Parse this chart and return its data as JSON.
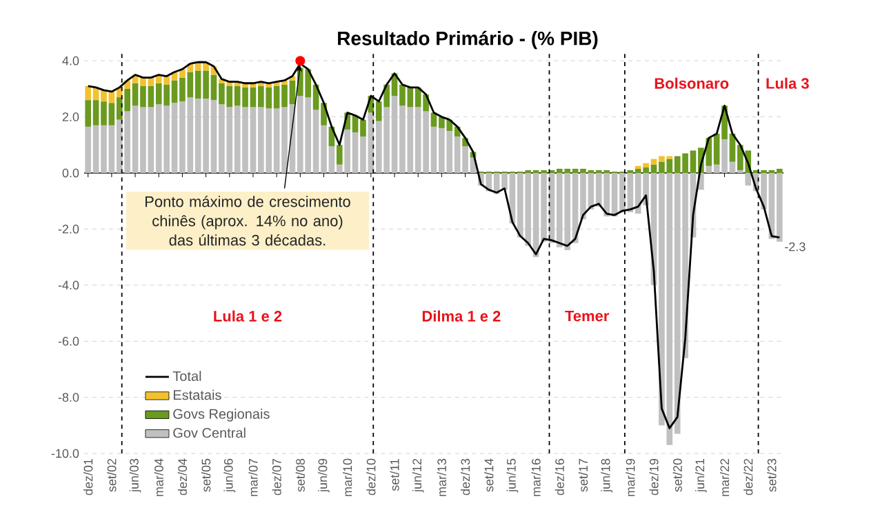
{
  "chart_data": {
    "type": "bar",
    "title": "Resultado Primário - (% PIB)",
    "stacked": true,
    "grid": "y",
    "legend": "bottom left",
    "categories": [
      "dez/01",
      null,
      null,
      "set/02",
      null,
      null,
      "jun/03",
      null,
      null,
      "mar/04",
      null,
      null,
      "dez/04",
      null,
      null,
      "set/05",
      null,
      null,
      "jun/06",
      null,
      null,
      "mar/07",
      null,
      null,
      "dez/07",
      null,
      null,
      "set/08",
      null,
      null,
      "jun/09",
      null,
      null,
      "mar/10",
      null,
      null,
      "dez/10",
      null,
      null,
      "set/11",
      null,
      null,
      "jun/12",
      null,
      null,
      "mar/13",
      null,
      null,
      "dez/13",
      null,
      null,
      "set/14",
      null,
      null,
      "jun/15",
      null,
      null,
      "mar/16",
      null,
      null,
      "dez/16",
      null,
      null,
      "set/17",
      null,
      null,
      "jun/18",
      null,
      null,
      "mar/19",
      null,
      null,
      "dez/19",
      null,
      null,
      "set/20",
      null,
      null,
      "jun/21",
      null,
      null,
      "mar/22",
      null,
      null,
      "dez/22",
      null,
      null,
      "set/23",
      null
    ],
    "ylim": [
      -10,
      4.3
    ],
    "yticks": [
      {
        "value": -10,
        "label": "-10.0"
      },
      {
        "value": -8,
        "label": "-8.0"
      },
      {
        "value": -6,
        "label": "-6.0"
      },
      {
        "value": -4,
        "label": "-4.0"
      },
      {
        "value": -2,
        "label": "-2.0"
      },
      {
        "value": 0,
        "label": "0.0"
      },
      {
        "value": 2,
        "label": "2.0"
      },
      {
        "value": 4,
        "label": "4.0"
      }
    ],
    "series": [
      {
        "name": "Gov Central",
        "color": "#c0c0c0",
        "values": [
          1.65,
          1.7,
          1.7,
          1.7,
          1.9,
          2.2,
          2.4,
          2.35,
          2.35,
          2.45,
          2.4,
          2.5,
          2.55,
          2.7,
          2.65,
          2.65,
          2.6,
          2.45,
          2.35,
          2.4,
          2.35,
          2.35,
          2.35,
          2.3,
          2.3,
          2.35,
          2.45,
          2.75,
          2.7,
          2.25,
          1.7,
          0.95,
          0.3,
          1.55,
          1.45,
          1.3,
          2.15,
          1.85,
          2.35,
          2.75,
          2.4,
          2.35,
          2.35,
          2.2,
          1.65,
          1.6,
          1.5,
          1.3,
          0.95,
          0.55,
          -0.45,
          -0.65,
          -0.75,
          -0.6,
          -1.8,
          -2.3,
          -2.6,
          -3.0,
          -2.45,
          -2.5,
          -2.65,
          -2.75,
          -2.5,
          -1.65,
          -1.3,
          -1.2,
          -1.55,
          -1.55,
          -1.4,
          -1.4,
          -1.45,
          -1.15,
          -4.0,
          -9.0,
          -9.7,
          -9.3,
          -6.6,
          -2.3,
          -0.6,
          0.25,
          0.3,
          1.2,
          0.4,
          0.1,
          -0.45,
          -0.65,
          -1.3,
          -2.35,
          -2.45
        ]
      },
      {
        "name": "Govs Regionais",
        "color": "#6a9a1f",
        "values": [
          0.95,
          0.9,
          0.85,
          0.8,
          0.8,
          0.8,
          0.8,
          0.75,
          0.75,
          0.75,
          0.75,
          0.8,
          0.85,
          0.9,
          1.0,
          1.0,
          0.9,
          0.75,
          0.75,
          0.7,
          0.7,
          0.7,
          0.75,
          0.75,
          0.8,
          0.8,
          0.85,
          1.0,
          1.0,
          0.9,
          0.8,
          0.7,
          0.7,
          0.6,
          0.6,
          0.6,
          0.6,
          0.7,
          0.8,
          0.8,
          0.75,
          0.7,
          0.7,
          0.6,
          0.5,
          0.4,
          0.4,
          0.35,
          0.3,
          0.2,
          0.05,
          0.05,
          0.05,
          0.05,
          0.05,
          0.05,
          0.1,
          0.1,
          0.1,
          0.1,
          0.15,
          0.15,
          0.15,
          0.15,
          0.1,
          0.1,
          0.1,
          0.05,
          0.05,
          0.1,
          0.15,
          0.2,
          0.3,
          0.4,
          0.5,
          0.6,
          0.7,
          0.8,
          0.9,
          1.0,
          1.1,
          1.2,
          1.0,
          0.9,
          0.8,
          0.1,
          0.1,
          0.1,
          0.15
        ]
      },
      {
        "name": "Estatais",
        "color": "#f2c12e",
        "values": [
          0.5,
          0.45,
          0.4,
          0.4,
          0.35,
          0.3,
          0.3,
          0.3,
          0.3,
          0.3,
          0.3,
          0.3,
          0.3,
          0.3,
          0.3,
          0.3,
          0.3,
          0.15,
          0.15,
          0.15,
          0.15,
          0.15,
          0.15,
          0.15,
          0.15,
          0.15,
          0.15,
          null,
          0,
          0,
          0,
          0,
          0,
          0,
          0,
          0,
          0,
          0,
          0,
          0,
          0,
          0,
          0,
          0,
          0,
          0,
          0,
          0,
          0,
          0,
          0,
          0,
          0,
          0,
          0,
          0,
          0,
          0,
          0,
          0,
          0,
          0,
          0,
          0,
          0,
          0,
          0,
          0,
          0,
          0,
          0.1,
          0.15,
          0.2,
          0.2,
          0.1,
          0,
          0,
          0,
          0,
          0,
          0,
          0,
          0,
          0,
          0,
          0,
          0,
          0,
          0
        ]
      },
      {
        "name": "Total",
        "type": "line",
        "color": "#000000",
        "values": [
          3.1,
          3.05,
          2.95,
          2.9,
          3.05,
          3.3,
          3.5,
          3.4,
          3.4,
          3.5,
          3.45,
          3.6,
          3.7,
          3.9,
          3.95,
          3.95,
          3.8,
          3.35,
          3.25,
          3.25,
          3.2,
          3.2,
          3.25,
          3.2,
          3.25,
          3.3,
          3.45,
          3.9,
          3.7,
          3.15,
          2.5,
          1.65,
          1.0,
          2.15,
          2.05,
          1.9,
          2.75,
          2.55,
          3.15,
          3.55,
          3.15,
          3.05,
          3.05,
          2.8,
          2.15,
          2.0,
          1.9,
          1.65,
          1.25,
          0.75,
          -0.4,
          -0.6,
          -0.7,
          -0.55,
          -1.75,
          -2.25,
          -2.5,
          -2.9,
          -2.35,
          -2.4,
          -2.5,
          -2.6,
          -2.35,
          -1.5,
          -1.2,
          -1.1,
          -1.45,
          -1.5,
          -1.35,
          -1.3,
          -1.2,
          -0.8,
          -3.5,
          -8.4,
          -9.1,
          -8.7,
          -5.9,
          -1.5,
          0.3,
          1.25,
          1.4,
          2.4,
          1.4,
          1.0,
          0.35,
          -0.55,
          -1.2,
          -2.25,
          -2.3
        ],
        "value_labels": [
          null,
          null,
          null,
          null,
          null,
          null,
          null,
          null,
          null,
          null,
          null,
          null,
          null,
          null,
          null,
          null,
          null,
          null,
          null,
          null,
          null,
          null,
          null,
          null,
          null,
          null,
          null,
          null,
          null,
          null,
          null,
          null,
          null,
          null,
          null,
          null,
          null,
          null,
          null,
          null,
          null,
          null,
          null,
          null,
          null,
          null,
          null,
          null,
          null,
          null,
          null,
          null,
          null,
          null,
          null,
          null,
          null,
          null,
          null,
          null,
          null,
          null,
          null,
          null,
          null,
          null,
          null,
          null,
          null,
          null,
          null,
          null,
          null,
          null,
          null,
          null,
          null,
          null,
          null,
          null,
          null,
          null,
          null,
          null,
          null,
          null,
          null,
          null,
          "-2.3"
        ]
      }
    ],
    "annotations": [
      {
        "text": "Ponto máximo de crescimento chinês (aprox. 14% no ano) das últimas 3 décadas.",
        "x": "set/08",
        "y": 4.0
      },
      "Lula 1 e 2",
      "Dilma 1 e 2",
      "Temer",
      "Bolsonaro",
      "Lula 3"
    ]
  }
}
